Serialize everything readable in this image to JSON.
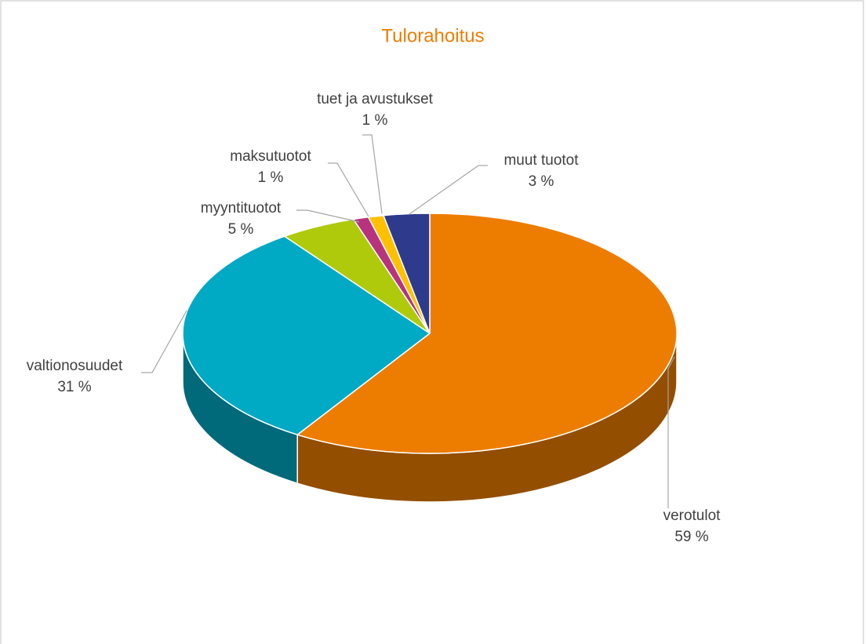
{
  "chart_data": {
    "type": "pie",
    "title": "Tulorahoitus",
    "categories": [
      "verotulot",
      "valtionosuudet",
      "myyntituotot",
      "maksutuotot",
      "tuet ja avustukset",
      "muut tuotot"
    ],
    "values": [
      59,
      31,
      5,
      1,
      1,
      3
    ],
    "value_labels": [
      "59 %",
      "31 %",
      "5 %",
      "1 %",
      "1 %",
      "3 %"
    ],
    "colors": [
      "#ED7D00",
      "#00A9C4",
      "#AFCA0B",
      "#B8337E",
      "#FFC000",
      "#2E3A8C"
    ]
  }
}
